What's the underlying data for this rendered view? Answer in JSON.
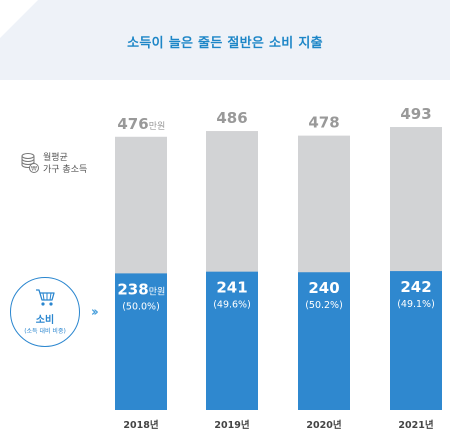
{
  "title": "소득이 늘은 줄든 절반은 소비 지출",
  "legend": {
    "income_line1": "월평균",
    "income_line2": "가구 총소득",
    "income_icon": "coin-stack-icon",
    "spend_label": "소비",
    "spend_sub": "(소득 대비 비중)",
    "spend_icon": "shopping-cart-icon"
  },
  "colors": {
    "income": "#d2d3d5",
    "spend": "#2f88cf",
    "accent": "#1d86c7"
  },
  "chart_data": {
    "type": "bar",
    "categories": [
      "2018년",
      "2019년",
      "2020년",
      "2021년"
    ],
    "series": [
      {
        "name": "월평균 가구 총소득",
        "values": [
          476,
          486,
          478,
          493
        ]
      },
      {
        "name": "소비",
        "values": [
          238,
          241,
          240,
          242
        ]
      }
    ],
    "share_labels": [
      "(50.0%)",
      "(49.6%)",
      "(50.2%)",
      "(49.1%)"
    ],
    "unit": "만원",
    "title": "소득이 늘은 줄든 절반은 소비 지출"
  }
}
